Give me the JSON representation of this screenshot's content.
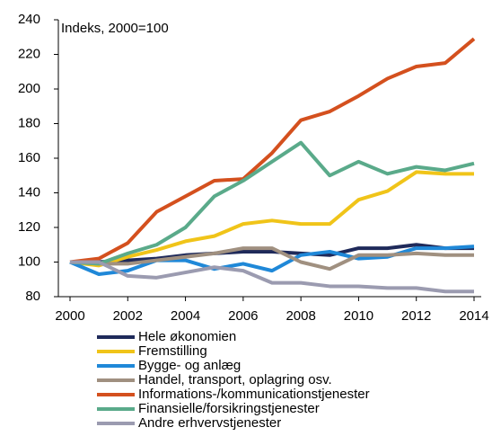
{
  "chart_data": {
    "type": "line",
    "annotation": "Indeks, 2000=100",
    "x": [
      2000,
      2001,
      2002,
      2003,
      2004,
      2005,
      2006,
      2007,
      2008,
      2009,
      2010,
      2011,
      2012,
      2013,
      2014
    ],
    "xlim": [
      2000,
      2014
    ],
    "xticks": [
      2000,
      2002,
      2004,
      2006,
      2008,
      2010,
      2012,
      2014
    ],
    "ylim": [
      80,
      240
    ],
    "yticks": [
      80,
      100,
      120,
      140,
      160,
      180,
      200,
      220,
      240
    ],
    "series": [
      {
        "name": "Hele økonomien",
        "color": "#1f2a5a",
        "values": [
          100,
          100,
          101,
          102,
          104,
          105,
          106,
          106,
          105,
          104,
          108,
          108,
          110,
          108,
          108
        ]
      },
      {
        "name": "Fremstilling",
        "color": "#f0c419",
        "values": [
          100,
          98,
          103,
          107,
          112,
          115,
          122,
          124,
          122,
          122,
          136,
          141,
          152,
          151,
          151
        ]
      },
      {
        "name": "Bygge- og anlæg",
        "color": "#1f88d8",
        "values": [
          100,
          93,
          95,
          101,
          101,
          96,
          99,
          95,
          104,
          106,
          102,
          103,
          108,
          108,
          109
        ]
      },
      {
        "name": "Handel, transport, oplagring osv.",
        "color": "#a09080",
        "values": [
          100,
          99,
          99,
          101,
          103,
          105,
          108,
          108,
          100,
          96,
          104,
          104,
          105,
          104,
          104
        ]
      },
      {
        "name": "Informations-/kommunicationstjenester",
        "color": "#d4501e",
        "values": [
          100,
          102,
          111,
          129,
          138,
          147,
          148,
          163,
          182,
          187,
          196,
          206,
          213,
          215,
          229
        ]
      },
      {
        "name": "Finansielle/forsikringstjenester",
        "color": "#5aaa8a",
        "values": [
          100,
          99,
          105,
          110,
          120,
          138,
          147,
          158,
          169,
          150,
          158,
          151,
          155,
          153,
          157
        ]
      },
      {
        "name": "Andre erhvervstjenester",
        "color": "#9b9bb0",
        "values": [
          100,
          100,
          92,
          91,
          94,
          97,
          95,
          88,
          88,
          86,
          86,
          85,
          85,
          83,
          83
        ]
      }
    ]
  }
}
